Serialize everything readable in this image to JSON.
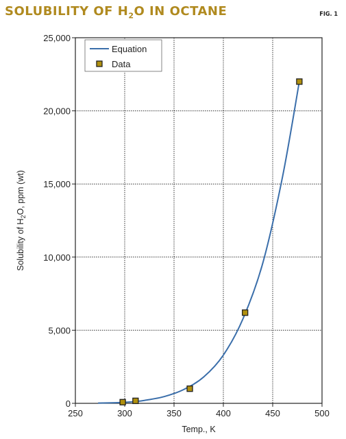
{
  "header": {
    "title_pre": "SOLUBILITY OF H",
    "title_sub": "2",
    "title_post": "O IN OCTANE",
    "fig_label": "FIG. 1"
  },
  "colors": {
    "title": "#b08a1f",
    "line": "#3a6eaa",
    "marker_fill": "#b0900e",
    "marker_edge": "#222222",
    "grid": "#333333"
  },
  "chart_data": {
    "type": "scatter",
    "title": "SOLUBILITY OF H2O IN OCTANE",
    "xlabel": "Temp., K",
    "ylabel_pre": "Solubility of H",
    "ylabel_sub": "2",
    "ylabel_post": "O, ppm (wt)",
    "xlim": [
      250,
      500
    ],
    "ylim": [
      0,
      25000
    ],
    "x_ticks": [
      250,
      300,
      350,
      400,
      450,
      500
    ],
    "x_tick_labels": [
      "250",
      "300",
      "350",
      "400",
      "450",
      "500"
    ],
    "y_ticks": [
      0,
      5000,
      10000,
      15000,
      20000,
      25000
    ],
    "y_tick_labels": [
      "0",
      "5,000",
      "10,000",
      "15,000",
      "20,000",
      "25,000"
    ],
    "grid": true,
    "legend_position": "top-left",
    "series": [
      {
        "name": "Equation",
        "kind": "line",
        "x": [
          273,
          290,
          300,
          310,
          320,
          340,
          360,
          380,
          400,
          420,
          440,
          460,
          477
        ],
        "y": [
          15,
          40,
          70,
          120,
          200,
          460,
          950,
          1800,
          3300,
          5800,
          9600,
          15500,
          22000
        ]
      },
      {
        "name": "Data",
        "kind": "markers",
        "x": [
          298,
          311,
          366,
          422,
          477
        ],
        "y": [
          80,
          170,
          1000,
          6200,
          22000
        ]
      }
    ]
  }
}
